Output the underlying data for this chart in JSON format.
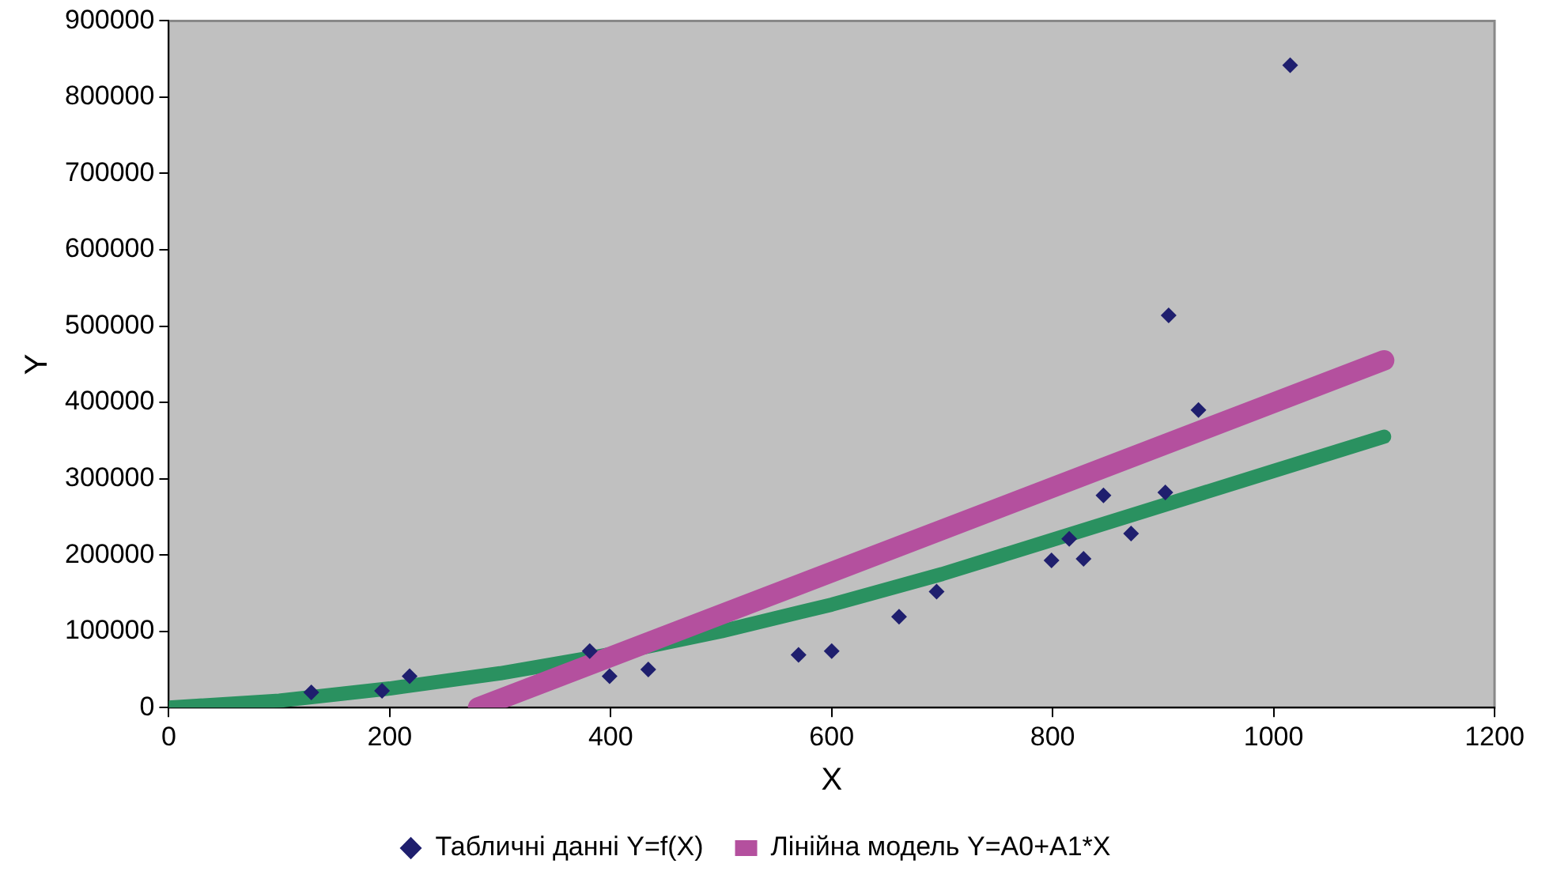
{
  "chart_data": {
    "type": "scatter",
    "xlabel": "X",
    "ylabel": "Y",
    "xlim": [
      0,
      1200
    ],
    "xticks": [
      0,
      200,
      400,
      600,
      800,
      1000,
      1200
    ],
    "ylim": [
      0,
      900000
    ],
    "yticks": [
      0,
      100000,
      200000,
      300000,
      400000,
      500000,
      600000,
      700000,
      800000,
      900000
    ],
    "grid": false,
    "legend": "bottom",
    "series": [
      {
        "name": "Табличні данні Y=f(X)",
        "color": "#1f1f6e",
        "marker": "diamond",
        "x": [
          129,
          193,
          218,
          381,
          399,
          434,
          570,
          600,
          661,
          695,
          799,
          815,
          828,
          846,
          871,
          902,
          905,
          932,
          1015
        ],
        "values": [
          20000,
          22000,
          41000,
          74000,
          41000,
          50000,
          69000,
          74000,
          119000,
          152000,
          193000,
          221000,
          195000,
          278000,
          228000,
          282000,
          514000,
          390000,
          842000
        ]
      },
      {
        "type": "line",
        "name": "Лінійна модель Y=A0+A1*X",
        "color": "#b4509e",
        "marker": "none",
        "line_style": "solid",
        "x": [
          280,
          1100
        ],
        "values": [
          0,
          455000
        ]
      },
      {
        "type": "line",
        "color": "#2a9160",
        "marker": "none",
        "line_style": "solid",
        "x": [
          0,
          100,
          200,
          300,
          400,
          500,
          600,
          700,
          800,
          900,
          1000,
          1100
        ],
        "values": [
          0,
          9000,
          25000,
          45000,
          70000,
          100000,
          135000,
          175000,
          220000,
          265000,
          310000,
          355000
        ]
      }
    ]
  }
}
